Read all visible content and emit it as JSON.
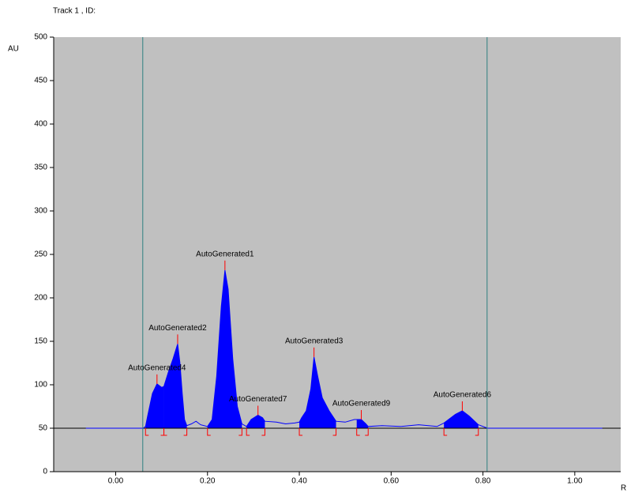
{
  "chart_data": {
    "type": "densitogram",
    "title": "Track  1 , ID:",
    "y_label": "AU",
    "x_label": "R",
    "background": "#c0c0c0",
    "color": "#0000ff",
    "marker_color": "#ff0000",
    "track_line_color": "#2f7f7f",
    "baseline": 50,
    "track_lines": [
      0.059,
      0.809
    ],
    "xlim": [
      -0.135,
      1.1
    ],
    "ylim": [
      0,
      500
    ],
    "xticks": [
      {
        "value": 0,
        "label": "0.00"
      },
      {
        "value": 0.2,
        "label": "0.20"
      },
      {
        "value": 0.4,
        "label": "0.40"
      },
      {
        "value": 0.6,
        "label": "0.60"
      },
      {
        "value": 0.8,
        "label": "0.80"
      },
      {
        "value": 1,
        "label": "1.00"
      }
    ],
    "yticks": [
      0,
      50,
      100,
      150,
      200,
      250,
      300,
      350,
      400,
      450,
      500
    ],
    "x": [
      -0.065,
      0.06,
      0.065,
      0.07,
      0.08,
      0.09,
      0.1,
      0.105,
      0.115,
      0.125,
      0.135,
      0.14,
      0.145,
      0.15,
      0.155,
      0.165,
      0.175,
      0.185,
      0.2,
      0.21,
      0.22,
      0.23,
      0.238,
      0.245,
      0.255,
      0.265,
      0.275,
      0.285,
      0.295,
      0.31,
      0.32,
      0.325,
      0.35,
      0.37,
      0.39,
      0.4,
      0.405,
      0.415,
      0.425,
      0.432,
      0.44,
      0.45,
      0.465,
      0.48,
      0.5,
      0.52,
      0.525,
      0.535,
      0.545,
      0.55,
      0.58,
      0.62,
      0.66,
      0.7,
      0.715,
      0.74,
      0.755,
      0.77,
      0.79,
      0.81,
      1.06
    ],
    "values": [
      50,
      50,
      52,
      65,
      90,
      101,
      97,
      98,
      115,
      130,
      147,
      125,
      90,
      60,
      53,
      55,
      58,
      54,
      52,
      60,
      110,
      190,
      232,
      210,
      130,
      75,
      55,
      52,
      60,
      65,
      62,
      58,
      57,
      55,
      56,
      57,
      62,
      70,
      95,
      132,
      110,
      85,
      70,
      58,
      57,
      60,
      60,
      60,
      55,
      52,
      53,
      52,
      54,
      52,
      56,
      66,
      70,
      64,
      54,
      50,
      50
    ],
    "peaks": [
      {
        "name": "AutoGenerated4",
        "x": 0.09,
        "start": 0.065,
        "end": 0.105
      },
      {
        "name": "AutoGenerated2",
        "x": 0.135,
        "start": 0.105,
        "end": 0.155
      },
      {
        "name": "AutoGenerated1",
        "x": 0.238,
        "start": 0.2,
        "end": 0.275
      },
      {
        "name": "AutoGenerated7",
        "x": 0.31,
        "start": 0.285,
        "end": 0.325
      },
      {
        "name": "AutoGenerated3",
        "x": 0.432,
        "start": 0.4,
        "end": 0.48
      },
      {
        "name": "AutoGenerated9",
        "x": 0.535,
        "start": 0.525,
        "end": 0.55
      },
      {
        "name": "AutoGenerated6",
        "x": 0.755,
        "start": 0.715,
        "end": 0.79
      }
    ]
  }
}
